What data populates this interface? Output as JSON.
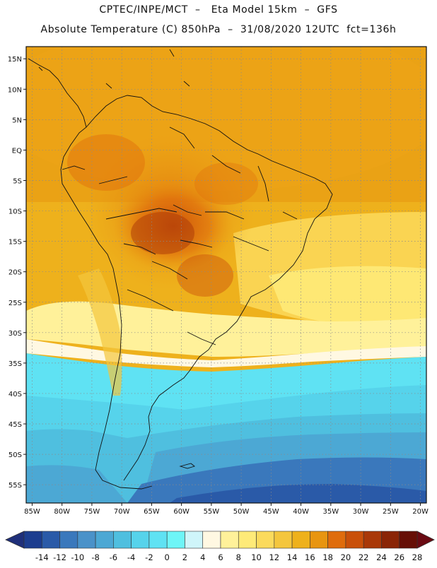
{
  "header": {
    "line1": "CPTEC/INPE/MCT  –   Eta Model 15km  –  GFS",
    "line2": "Absolute Temperature (C) 850hPa  –  31/08/2020 12UTC  fct=136h"
  },
  "map": {
    "lon_range": [
      -86,
      -19
    ],
    "lat_range": [
      -58,
      17
    ],
    "x_ticks": [
      {
        "v": -85,
        "label": "85W"
      },
      {
        "v": -80,
        "label": "80W"
      },
      {
        "v": -75,
        "label": "75W"
      },
      {
        "v": -70,
        "label": "70W"
      },
      {
        "v": -65,
        "label": "65W"
      },
      {
        "v": -60,
        "label": "60W"
      },
      {
        "v": -55,
        "label": "55W"
      },
      {
        "v": -50,
        "label": "50W"
      },
      {
        "v": -45,
        "label": "45W"
      },
      {
        "v": -40,
        "label": "40W"
      },
      {
        "v": -35,
        "label": "35W"
      },
      {
        "v": -30,
        "label": "30W"
      },
      {
        "v": -25,
        "label": "25W"
      },
      {
        "v": -20,
        "label": "20W"
      }
    ],
    "y_ticks": [
      {
        "v": 15,
        "label": "15N"
      },
      {
        "v": 10,
        "label": "10N"
      },
      {
        "v": 5,
        "label": "5N"
      },
      {
        "v": 0,
        "label": "EQ"
      },
      {
        "v": -5,
        "label": "5S"
      },
      {
        "v": -10,
        "label": "10S"
      },
      {
        "v": -15,
        "label": "15S"
      },
      {
        "v": -20,
        "label": "20S"
      },
      {
        "v": -25,
        "label": "25S"
      },
      {
        "v": -30,
        "label": "30S"
      },
      {
        "v": -35,
        "label": "35S"
      },
      {
        "v": -40,
        "label": "40S"
      },
      {
        "v": -45,
        "label": "45S"
      },
      {
        "v": -50,
        "label": "50S"
      },
      {
        "v": -55,
        "label": "55S"
      }
    ]
  },
  "colorbar": {
    "colors": [
      "#1c3d8f",
      "#2a5aa8",
      "#3a78bc",
      "#4a92c9",
      "#4ca8d4",
      "#4fbfdf",
      "#56d3eb",
      "#5fe2f3",
      "#6ef5f7",
      "#cff5fa",
      "#fff8e2",
      "#fff19a",
      "#feea78",
      "#fbda5c",
      "#f4c63d",
      "#eeb11c",
      "#e89510",
      "#df6c0c",
      "#c9500a",
      "#a93808",
      "#8a2506",
      "#660f06"
    ],
    "labels": [
      "-14",
      "-12",
      "-10",
      "-8",
      "-6",
      "-4",
      "-2",
      "0",
      "2",
      "4",
      "6",
      "8",
      "10",
      "12",
      "14",
      "16",
      "18",
      "20",
      "22",
      "24",
      "26",
      "28"
    ]
  }
}
